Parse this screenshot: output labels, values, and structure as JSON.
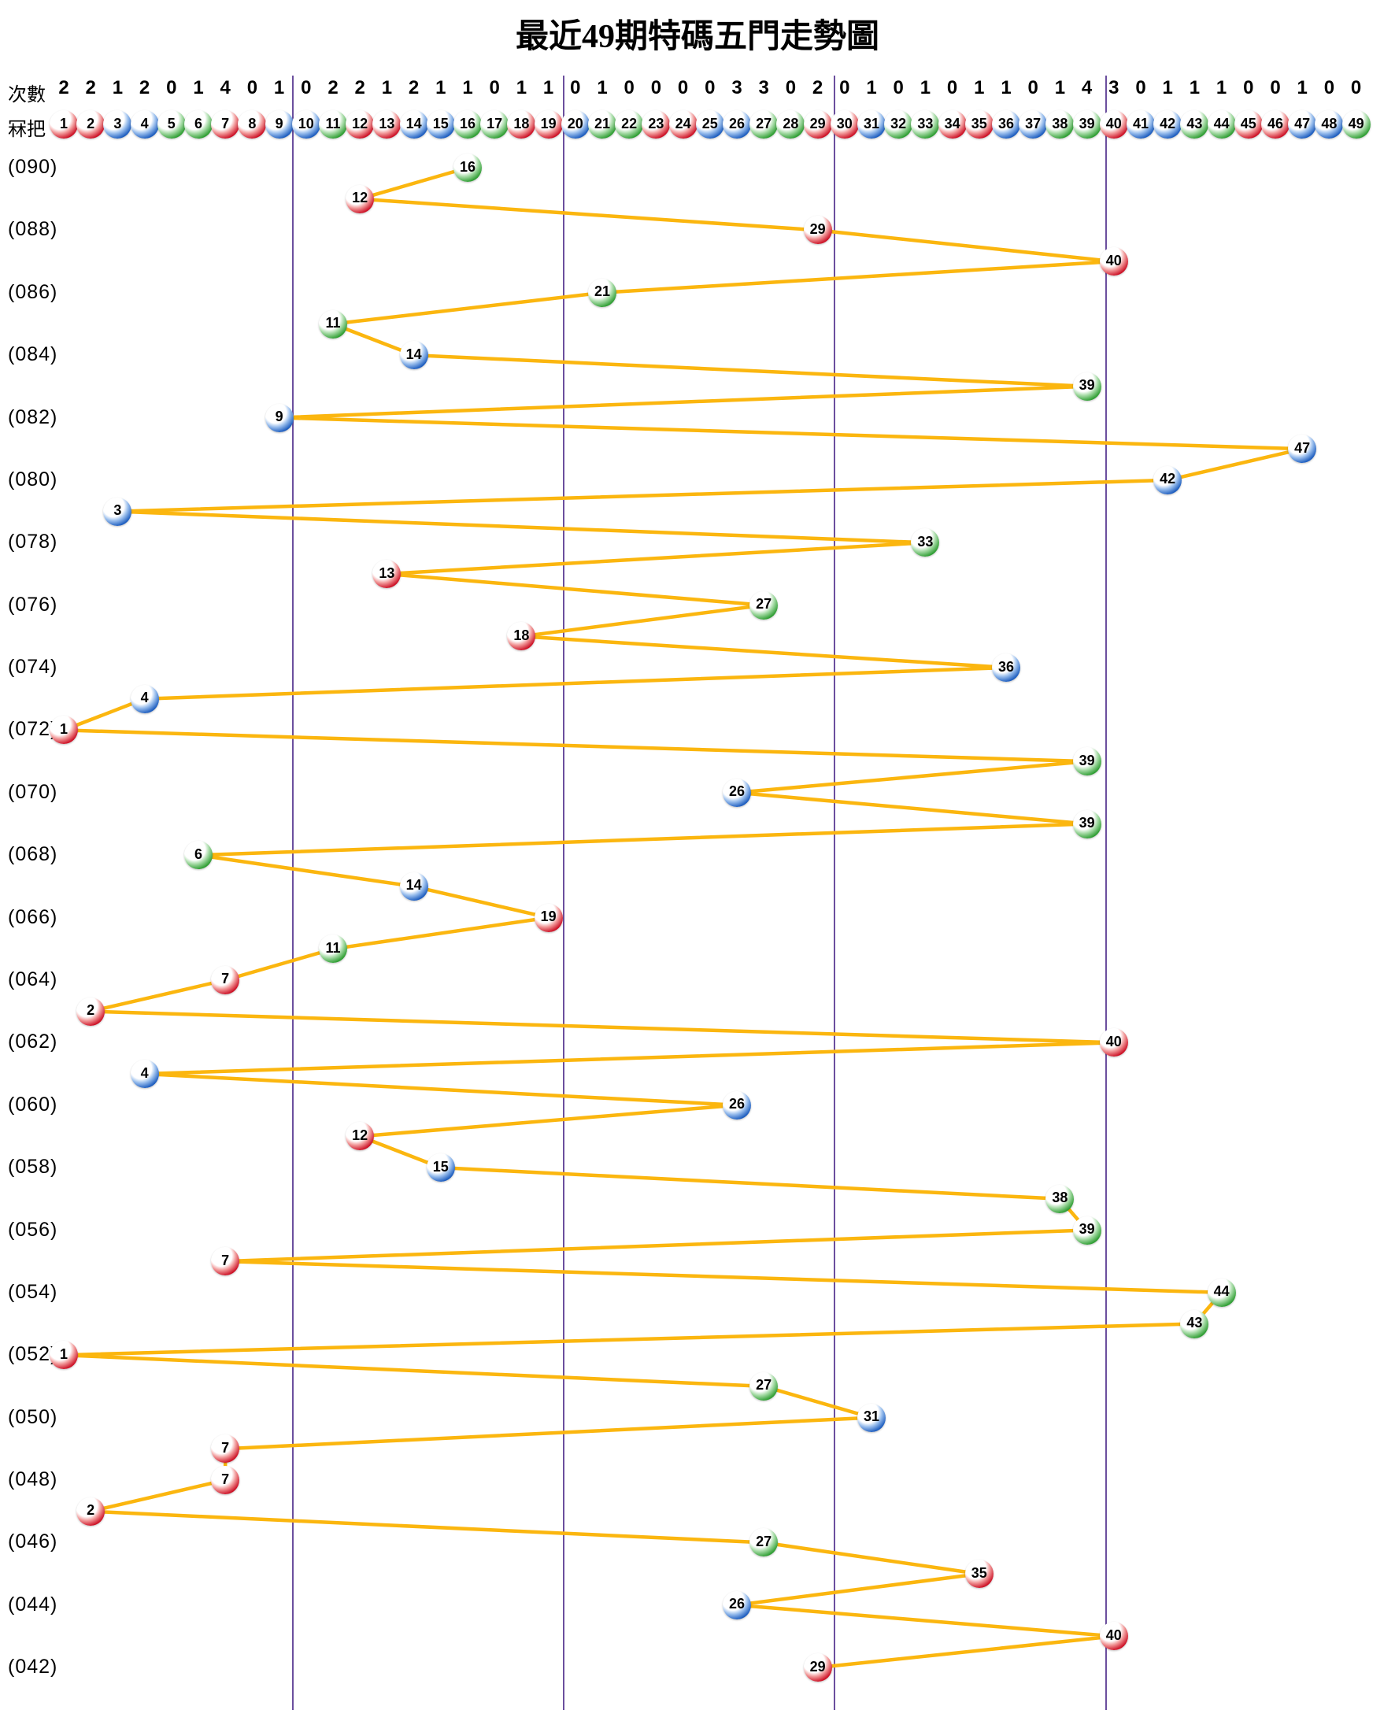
{
  "title": "最近49期特碼五門走勢圖",
  "header": {
    "counts_label": "次數",
    "numbers_label": "冧把",
    "ball_numbers": [
      1,
      2,
      3,
      4,
      5,
      6,
      7,
      8,
      9,
      10,
      11,
      12,
      13,
      14,
      15,
      16,
      17,
      18,
      19,
      20,
      21,
      22,
      23,
      24,
      25,
      26,
      27,
      28,
      29,
      30,
      31,
      32,
      33,
      34,
      35,
      36,
      37,
      38,
      39,
      40,
      41,
      42,
      43,
      44,
      45,
      46,
      47,
      48,
      49
    ],
    "counts": [
      2,
      2,
      1,
      2,
      0,
      1,
      4,
      0,
      1,
      0,
      2,
      2,
      1,
      2,
      1,
      1,
      0,
      1,
      1,
      0,
      1,
      0,
      0,
      0,
      0,
      3,
      3,
      0,
      2,
      0,
      1,
      0,
      1,
      0,
      1,
      1,
      0,
      1,
      4,
      3,
      0,
      1,
      1,
      1,
      0,
      0,
      1,
      0,
      0
    ]
  },
  "ball_color_groups": {
    "red_numbers": [
      1,
      2,
      7,
      8,
      12,
      13,
      18,
      19,
      23,
      24,
      29,
      30,
      34,
      35,
      40,
      45,
      46
    ],
    "blue_numbers": [
      3,
      4,
      9,
      10,
      14,
      15,
      20,
      25,
      26,
      31,
      36,
      37,
      41,
      42,
      47,
      48
    ],
    "green_numbers": [
      5,
      6,
      11,
      16,
      17,
      21,
      22,
      27,
      28,
      32,
      33,
      38,
      39,
      43,
      44,
      49
    ]
  },
  "colors": {
    "red_ball": "#cd1126",
    "blue_ball": "#1d5dbf",
    "green_ball": "#2f9e33",
    "trend_line": "#fbb60f",
    "separator_line": "#6b4f9e",
    "text": "#000000",
    "background": "#ffffff"
  },
  "chart_data": {
    "type": "line",
    "title": "最近49期特碼五門走勢圖",
    "x_axis_numbers_range": [
      1,
      49
    ],
    "column_groups": [
      [
        1,
        9
      ],
      [
        10,
        19
      ],
      [
        20,
        29
      ],
      [
        30,
        39
      ],
      [
        40,
        49
      ]
    ],
    "counts_per_number": [
      2,
      2,
      1,
      2,
      0,
      1,
      4,
      0,
      1,
      0,
      2,
      2,
      1,
      2,
      1,
      1,
      0,
      1,
      1,
      0,
      1,
      0,
      0,
      0,
      0,
      3,
      3,
      0,
      2,
      0,
      1,
      0,
      1,
      0,
      1,
      1,
      0,
      1,
      4,
      3,
      0,
      1,
      1,
      1,
      0,
      0,
      1,
      0,
      0
    ],
    "legend_position": "none",
    "grid": "vertical group separators only",
    "rows": [
      {
        "label": "(090)",
        "value": 16
      },
      {
        "label": "",
        "value": 12
      },
      {
        "label": "(088)",
        "value": 29
      },
      {
        "label": "",
        "value": 40
      },
      {
        "label": "(086)",
        "value": 21
      },
      {
        "label": "",
        "value": 11
      },
      {
        "label": "(084)",
        "value": 14
      },
      {
        "label": "",
        "value": 39
      },
      {
        "label": "(082)",
        "value": 9
      },
      {
        "label": "",
        "value": 47
      },
      {
        "label": "(080)",
        "value": 42
      },
      {
        "label": "",
        "value": 3
      },
      {
        "label": "(078)",
        "value": 33
      },
      {
        "label": "",
        "value": 13
      },
      {
        "label": "(076)",
        "value": 27
      },
      {
        "label": "",
        "value": 18
      },
      {
        "label": "(074)",
        "value": 36
      },
      {
        "label": "",
        "value": 4
      },
      {
        "label": "(072)",
        "value": 1
      },
      {
        "label": "",
        "value": 39
      },
      {
        "label": "(070)",
        "value": 26
      },
      {
        "label": "",
        "value": 39
      },
      {
        "label": "(068)",
        "value": 6
      },
      {
        "label": "",
        "value": 14
      },
      {
        "label": "(066)",
        "value": 19
      },
      {
        "label": "",
        "value": 11
      },
      {
        "label": "(064)",
        "value": 7
      },
      {
        "label": "",
        "value": 2
      },
      {
        "label": "(062)",
        "value": 40
      },
      {
        "label": "",
        "value": 4
      },
      {
        "label": "(060)",
        "value": 26
      },
      {
        "label": "",
        "value": 12
      },
      {
        "label": "(058)",
        "value": 15
      },
      {
        "label": "",
        "value": 38
      },
      {
        "label": "(056)",
        "value": 39
      },
      {
        "label": "",
        "value": 7
      },
      {
        "label": "(054)",
        "value": 44
      },
      {
        "label": "",
        "value": 43
      },
      {
        "label": "(052)",
        "value": 1
      },
      {
        "label": "",
        "value": 27
      },
      {
        "label": "(050)",
        "value": 31
      },
      {
        "label": "",
        "value": 7
      },
      {
        "label": "(048)",
        "value": 7
      },
      {
        "label": "",
        "value": 2
      },
      {
        "label": "(046)",
        "value": 27
      },
      {
        "label": "",
        "value": 35
      },
      {
        "label": "(044)",
        "value": 26
      },
      {
        "label": "",
        "value": 40
      },
      {
        "label": "(042)",
        "value": 29
      }
    ]
  }
}
